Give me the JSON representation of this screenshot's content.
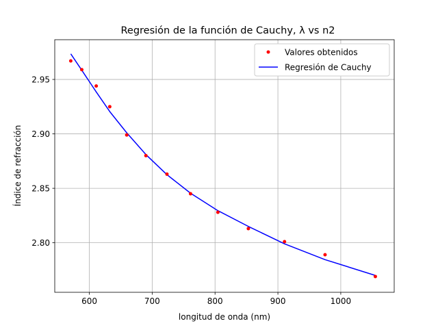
{
  "chart_data": {
    "type": "scatter",
    "title": "Regresión de la función de Cauchy, λ vs n2",
    "xlabel": "longitud de onda (nm)",
    "ylabel": "Índice de refracción",
    "xlim": [
      545,
      1085
    ],
    "ylim": [
      2.7545,
      2.9865
    ],
    "xticks": [
      600,
      700,
      800,
      900,
      1000
    ],
    "yticks": [
      2.8,
      2.85,
      2.9,
      2.95
    ],
    "xtick_labels": [
      "600",
      "700",
      "800",
      "900",
      "1000"
    ],
    "ytick_labels": [
      "2.80",
      "2.85",
      "2.90",
      "2.95"
    ],
    "grid": true,
    "legend_position": "upper right",
    "series": [
      {
        "name": "Valores obtenidos",
        "kind": "points",
        "color": "#ff0000",
        "x": [
          570.5,
          588,
          611,
          632.5,
          659.5,
          690,
          723.5,
          761,
          804.5,
          853,
          910.5,
          975,
          1055
        ],
        "y": [
          2.967,
          2.959,
          2.944,
          2.925,
          2.899,
          2.88,
          2.863,
          2.845,
          2.828,
          2.813,
          2.801,
          2.789,
          2.769
        ]
      },
      {
        "name": "Regresión de Cauchy",
        "kind": "line",
        "color": "#0000ff",
        "x": [
          570.5,
          588,
          611,
          632.5,
          659.5,
          690,
          723.5,
          761,
          804.5,
          853,
          910.5,
          975,
          1055
        ],
        "y": [
          2.9735,
          2.9585,
          2.9385,
          2.9205,
          2.901,
          2.881,
          2.8625,
          2.8455,
          2.8295,
          2.815,
          2.799,
          2.7845,
          2.77
        ]
      }
    ]
  }
}
